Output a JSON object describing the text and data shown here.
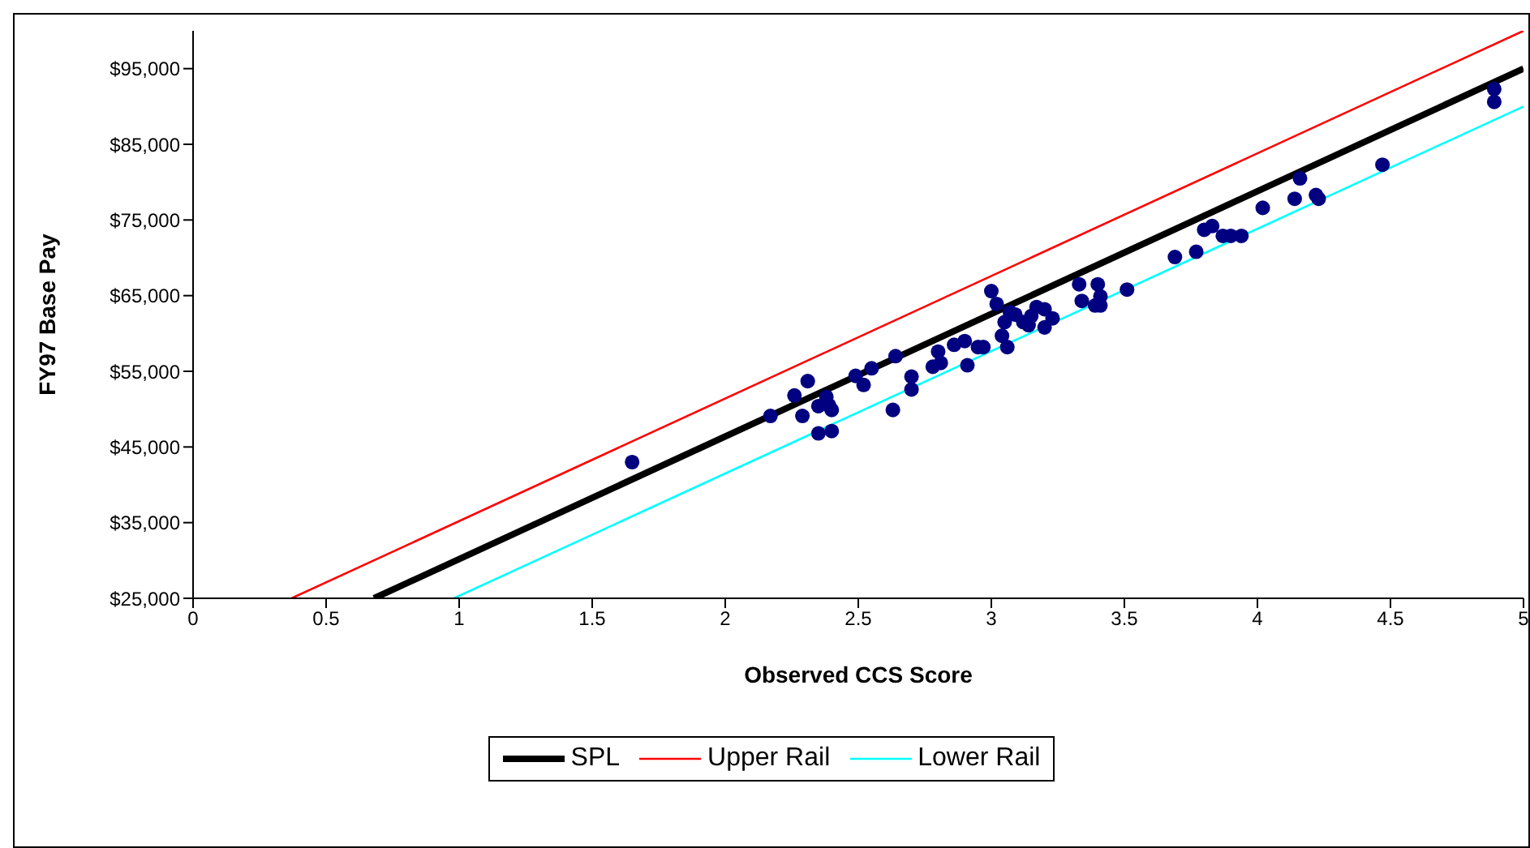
{
  "chart_data": {
    "type": "scatter",
    "xlabel": "Observed CCS Score",
    "ylabel": "FY97 Base Pay",
    "xlim": [
      0,
      5
    ],
    "xticks": [
      0,
      0.5,
      1,
      1.5,
      2,
      2.5,
      3,
      3.5,
      4,
      4.5,
      5
    ],
    "ylim": [
      25000,
      100000
    ],
    "yticks": [
      {
        "value": 25000,
        "label": "$25,000"
      },
      {
        "value": 35000,
        "label": "$35,000"
      },
      {
        "value": 45000,
        "label": "$45,000"
      },
      {
        "value": 55000,
        "label": "$55,000"
      },
      {
        "value": 65000,
        "label": "$65,000"
      },
      {
        "value": 75000,
        "label": "$75,000"
      },
      {
        "value": 85000,
        "label": "$85,000"
      },
      {
        "value": 95000,
        "label": "$95,000"
      }
    ],
    "grid": false,
    "legend": "bottom",
    "marker": "circle",
    "series": [
      {
        "color": "#000080",
        "x": [
          1.65,
          2.17,
          2.26,
          2.31,
          2.29,
          2.35,
          2.38,
          2.39,
          2.4,
          2.35,
          2.4,
          2.49,
          2.52,
          2.55,
          2.63,
          2.64,
          2.7,
          2.7,
          2.78,
          2.8,
          2.81,
          2.86,
          2.9,
          2.91,
          2.95,
          2.97,
          3.0,
          3.02,
          3.04,
          3.05,
          3.07,
          3.06,
          3.09,
          3.12,
          3.15,
          3.14,
          3.17,
          3.2,
          3.2,
          3.23,
          3.33,
          3.34,
          3.39,
          3.4,
          3.41,
          3.41,
          3.51,
          3.69,
          3.77,
          3.8,
          3.83,
          3.87,
          3.9,
          3.94,
          4.02,
          4.14,
          4.16,
          4.22,
          4.23,
          4.47,
          4.89,
          4.89
        ],
        "values": [
          43000,
          49100,
          51800,
          53700,
          49100,
          50400,
          51600,
          50500,
          49900,
          46800,
          47100,
          54400,
          53200,
          55400,
          49900,
          57000,
          54300,
          52600,
          55600,
          57600,
          56100,
          58500,
          59000,
          55800,
          58200,
          58200,
          65600,
          63900,
          59700,
          61500,
          62800,
          58200,
          62500,
          61500,
          62300,
          61100,
          63500,
          63200,
          60800,
          62000,
          66500,
          64300,
          63700,
          66500,
          64900,
          63700,
          65800,
          70100,
          70800,
          73700,
          74200,
          72900,
          72900,
          72900,
          76600,
          77800,
          80500,
          78300,
          77800,
          82300,
          92300,
          90600
        ]
      },
      {
        "type": "line",
        "name": "SPL",
        "color": "#000000",
        "marker": "none",
        "x": [
          0.68,
          5
        ],
        "values": [
          25000,
          95000
        ]
      },
      {
        "type": "line",
        "name": "Upper Rail",
        "color": "#ff0000",
        "marker": "none",
        "x": [
          0.37,
          5
        ],
        "values": [
          25000,
          100000
        ]
      },
      {
        "type": "line",
        "name": "Lower Rail",
        "color": "#00ffff",
        "marker": "none",
        "x": [
          0.98,
          5
        ],
        "values": [
          25000,
          90000
        ]
      }
    ]
  }
}
